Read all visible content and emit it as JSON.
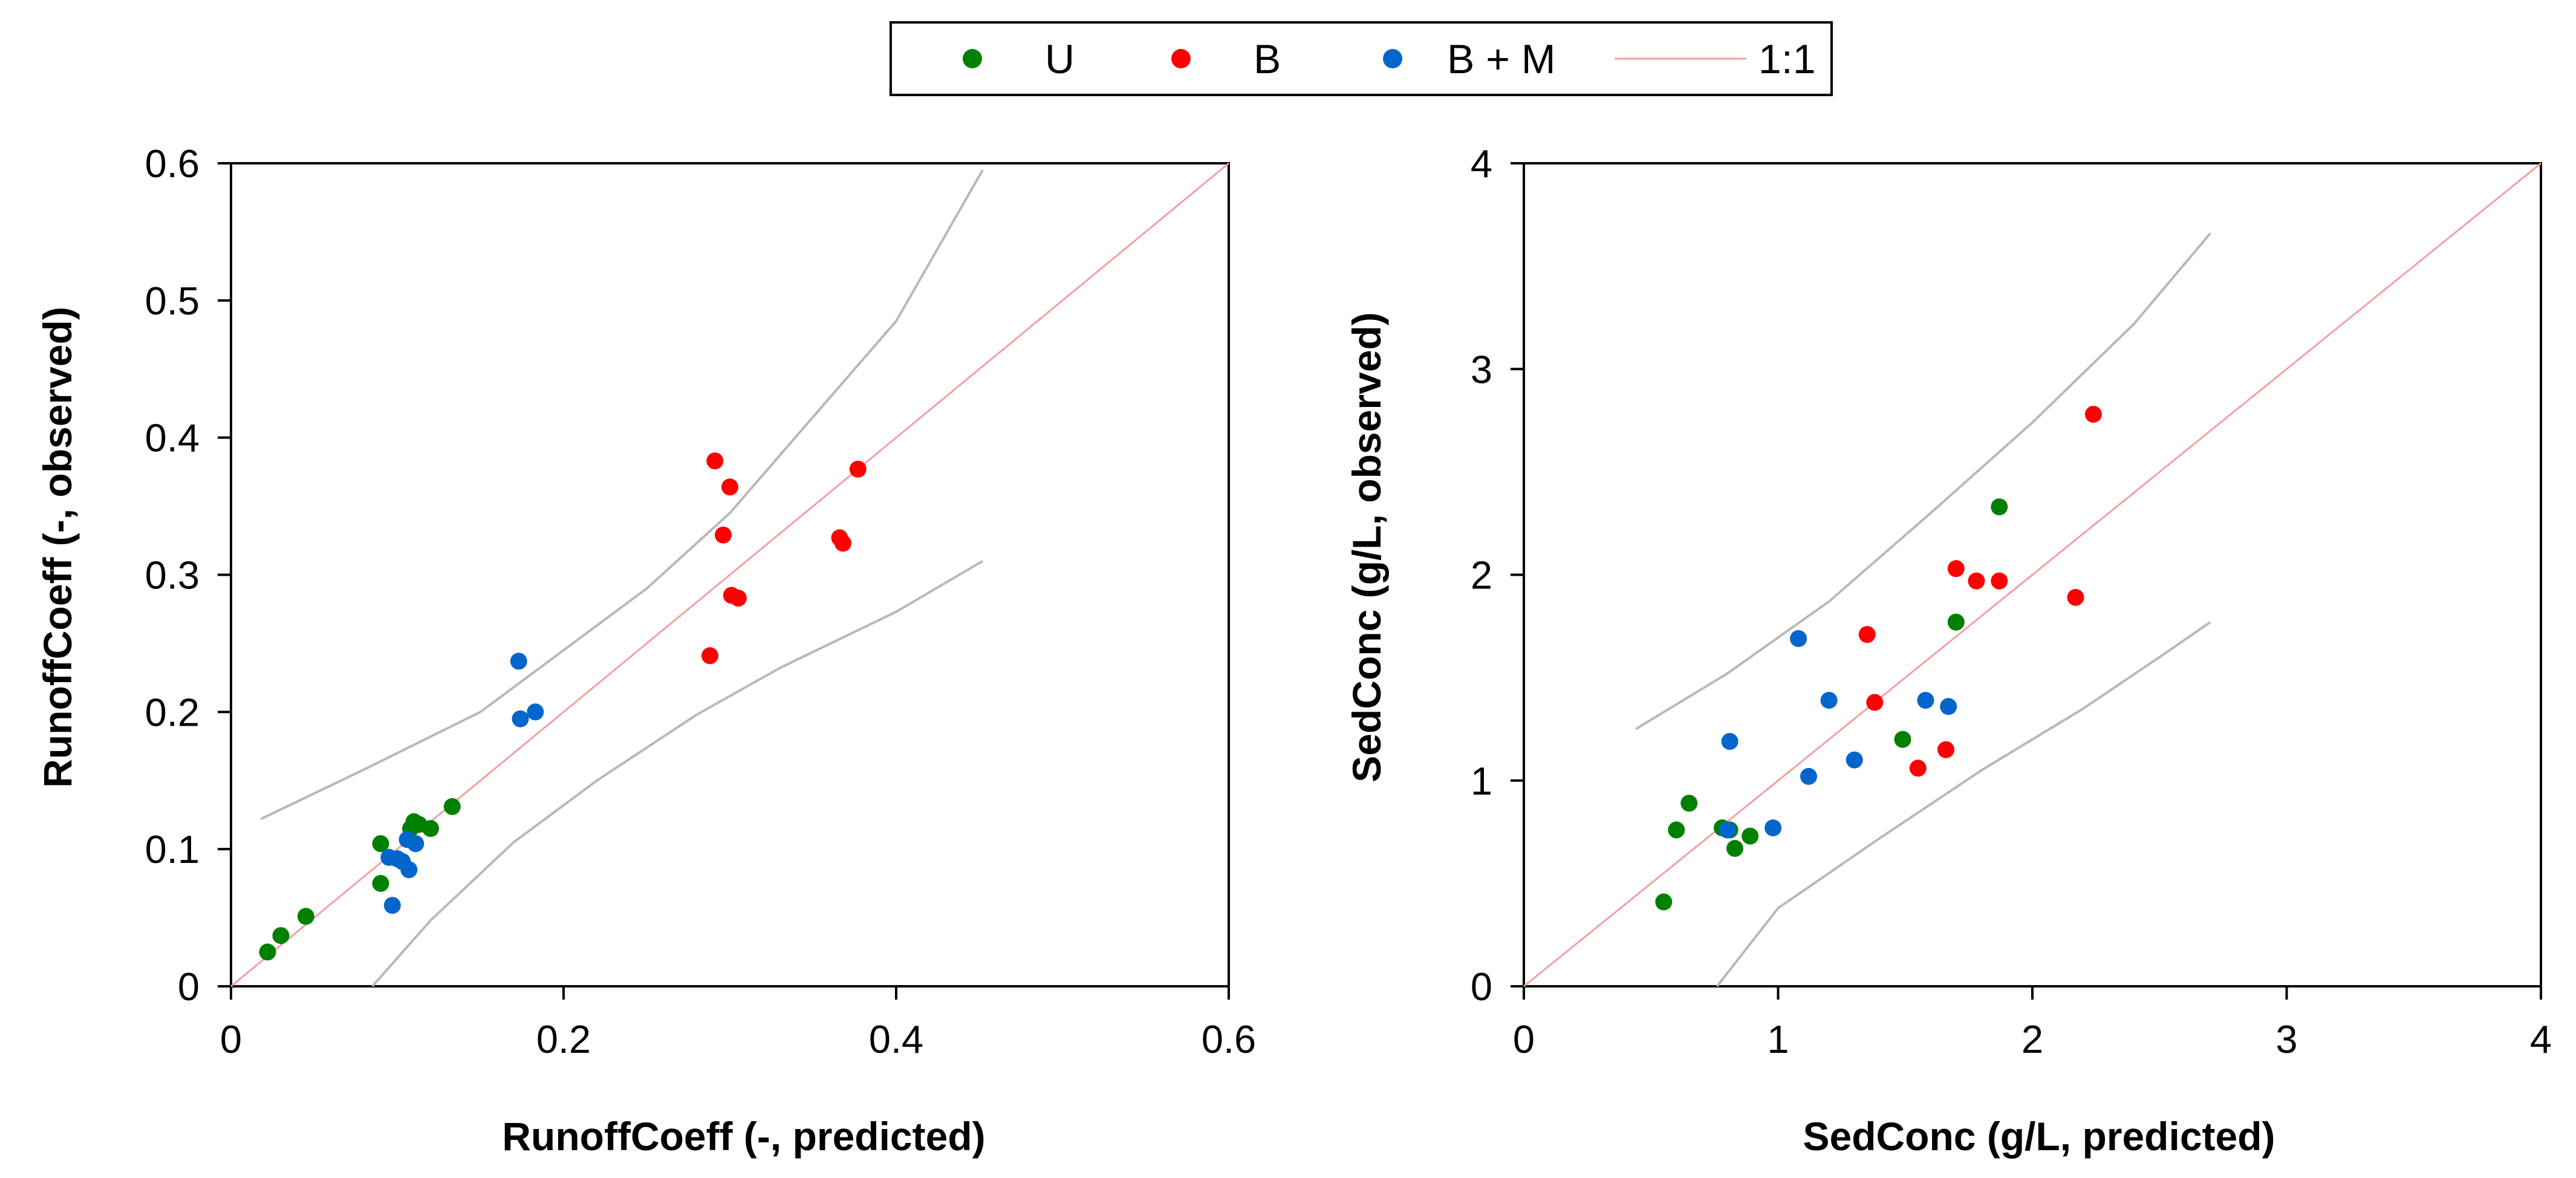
{
  "colors": {
    "U": "#008000",
    "B": "#ff0000",
    "BM": "#0066cc",
    "ref": "#f4a0a0",
    "band": "#b8b8b8"
  },
  "legend": {
    "items": [
      {
        "label": "U",
        "color": "#008000",
        "kind": "marker"
      },
      {
        "label": "B",
        "color": "#ff0000",
        "kind": "marker"
      },
      {
        "label": "B + M",
        "color": "#0066cc",
        "kind": "marker"
      },
      {
        "label": "1:1",
        "color": "#f4a0a0",
        "kind": "line"
      }
    ]
  },
  "chart_data": [
    {
      "type": "scatter",
      "xlabel": "RunoffCoeff (-, predicted)",
      "ylabel": "RunoffCoeff (-, observed)",
      "xlim": [
        0,
        0.6
      ],
      "ylim": [
        0,
        0.6
      ],
      "xticks": [
        "0",
        "0.2",
        "0.4",
        "0.6"
      ],
      "yticks": [
        "0",
        "0.1",
        "0.2",
        "0.3",
        "0.4",
        "0.5",
        "0.6"
      ],
      "series": [
        {
          "name": "U",
          "color": "#008000",
          "points": [
            [
              0.022,
              0.025
            ],
            [
              0.03,
              0.037
            ],
            [
              0.045,
              0.051
            ],
            [
              0.09,
              0.075
            ],
            [
              0.09,
              0.104
            ],
            [
              0.108,
              0.115
            ],
            [
              0.11,
              0.12
            ],
            [
              0.113,
              0.118
            ],
            [
              0.12,
              0.115
            ],
            [
              0.133,
              0.131
            ]
          ]
        },
        {
          "name": "B",
          "color": "#ff0000",
          "points": [
            [
              0.288,
              0.241
            ],
            [
              0.291,
              0.383
            ],
            [
              0.296,
              0.329
            ],
            [
              0.3,
              0.364
            ],
            [
              0.301,
              0.285
            ],
            [
              0.305,
              0.283
            ],
            [
              0.366,
              0.327
            ],
            [
              0.368,
              0.323
            ],
            [
              0.377,
              0.377
            ]
          ]
        },
        {
          "name": "B + M",
          "color": "#0066cc",
          "points": [
            [
              0.095,
              0.094
            ],
            [
              0.097,
              0.059
            ],
            [
              0.1,
              0.093
            ],
            [
              0.103,
              0.091
            ],
            [
              0.106,
              0.107
            ],
            [
              0.107,
              0.085
            ],
            [
              0.111,
              0.104
            ],
            [
              0.173,
              0.237
            ],
            [
              0.174,
              0.195
            ],
            [
              0.183,
              0.2
            ]
          ]
        }
      ],
      "ref_line": {
        "label": "1:1",
        "from": [
          0,
          0
        ],
        "to": [
          0.6,
          0.6
        ]
      },
      "band_upper": [
        [
          0.018,
          0.122
        ],
        [
          0.08,
          0.158
        ],
        [
          0.15,
          0.2
        ],
        [
          0.25,
          0.29
        ],
        [
          0.3,
          0.345
        ],
        [
          0.35,
          0.415
        ],
        [
          0.4,
          0.485
        ],
        [
          0.452,
          0.595
        ]
      ],
      "band_lower": [
        [
          0.085,
          0.0
        ],
        [
          0.12,
          0.048
        ],
        [
          0.17,
          0.105
        ],
        [
          0.22,
          0.15
        ],
        [
          0.28,
          0.198
        ],
        [
          0.33,
          0.232
        ],
        [
          0.4,
          0.273
        ],
        [
          0.452,
          0.31
        ]
      ]
    },
    {
      "type": "scatter",
      "xlabel": "SedConc (g/L, predicted)",
      "ylabel": "SedConc (g/L, observed)",
      "xlim": [
        0,
        4
      ],
      "ylim": [
        0,
        4
      ],
      "xticks": [
        "0",
        "1",
        "2",
        "3",
        "4"
      ],
      "yticks": [
        "0",
        "1",
        "2",
        "3",
        "4"
      ],
      "series": [
        {
          "name": "U",
          "color": "#008000",
          "points": [
            [
              0.55,
              0.41
            ],
            [
              0.6,
              0.76
            ],
            [
              0.65,
              0.89
            ],
            [
              0.78,
              0.77
            ],
            [
              0.81,
              0.76
            ],
            [
              0.83,
              0.67
            ],
            [
              0.89,
              0.73
            ],
            [
              1.49,
              1.2
            ],
            [
              1.7,
              1.77
            ],
            [
              1.87,
              2.33
            ]
          ]
        },
        {
          "name": "B",
          "color": "#ff0000",
          "points": [
            [
              1.35,
              1.71
            ],
            [
              1.38,
              1.38
            ],
            [
              1.55,
              1.06
            ],
            [
              1.66,
              1.15
            ],
            [
              1.7,
              2.03
            ],
            [
              1.78,
              1.97
            ],
            [
              1.87,
              1.97
            ],
            [
              2.17,
              1.89
            ],
            [
              2.24,
              2.78
            ]
          ]
        },
        {
          "name": "B + M",
          "color": "#0066cc",
          "points": [
            [
              0.8,
              0.76
            ],
            [
              0.81,
              1.19
            ],
            [
              0.98,
              0.77
            ],
            [
              1.08,
              1.69
            ],
            [
              1.12,
              1.02
            ],
            [
              1.2,
              1.39
            ],
            [
              1.3,
              1.1
            ],
            [
              1.58,
              1.39
            ],
            [
              1.67,
              1.36
            ]
          ]
        }
      ],
      "ref_line": {
        "label": "1:1",
        "from": [
          0,
          0
        ],
        "to": [
          4,
          4
        ]
      },
      "band_upper": [
        [
          0.44,
          1.25
        ],
        [
          0.8,
          1.52
        ],
        [
          1.2,
          1.87
        ],
        [
          1.6,
          2.3
        ],
        [
          2.0,
          2.74
        ],
        [
          2.4,
          3.22
        ],
        [
          2.7,
          3.66
        ]
      ],
      "band_lower": [
        [
          0.76,
          0.0
        ],
        [
          1.0,
          0.38
        ],
        [
          1.4,
          0.72
        ],
        [
          1.8,
          1.05
        ],
        [
          2.2,
          1.35
        ],
        [
          2.5,
          1.6
        ],
        [
          2.7,
          1.77
        ]
      ]
    }
  ]
}
